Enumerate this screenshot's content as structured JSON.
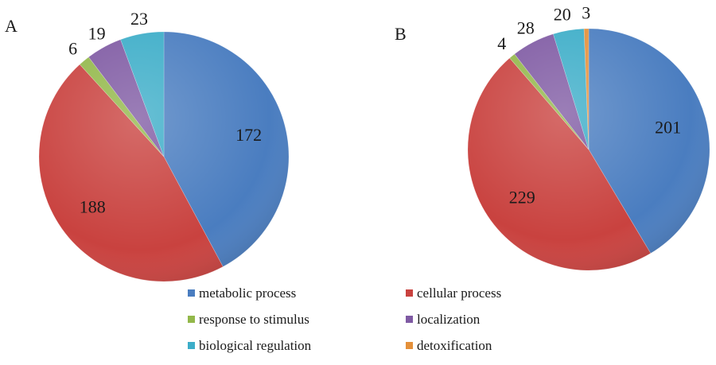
{
  "colors": {
    "metabolic process": "#4a7dc0",
    "cellular process": "#c9423f",
    "response to stimulus": "#93b84a",
    "localization": "#7f5aa3",
    "biological regulation": "#3cadc8",
    "detoxification": "#e4903a"
  },
  "chart_data": [
    {
      "type": "pie",
      "panel": "A",
      "slices": [
        {
          "label": "metabolic process",
          "value": 172
        },
        {
          "label": "cellular process",
          "value": 188
        },
        {
          "label": "response to stimulus",
          "value": 6
        },
        {
          "label": "localization",
          "value": 19
        },
        {
          "label": "biological regulation",
          "value": 23
        }
      ]
    },
    {
      "type": "pie",
      "panel": "B",
      "slices": [
        {
          "label": "metabolic process",
          "value": 201
        },
        {
          "label": "cellular process",
          "value": 229
        },
        {
          "label": "response to stimulus",
          "value": 4
        },
        {
          "label": "localization",
          "value": 28
        },
        {
          "label": "biological regulation",
          "value": 20
        },
        {
          "label": "detoxification",
          "value": 3
        }
      ]
    }
  ],
  "legend": [
    "metabolic process",
    "cellular process",
    "response to stimulus",
    "localization",
    "biological regulation",
    "detoxification"
  ]
}
